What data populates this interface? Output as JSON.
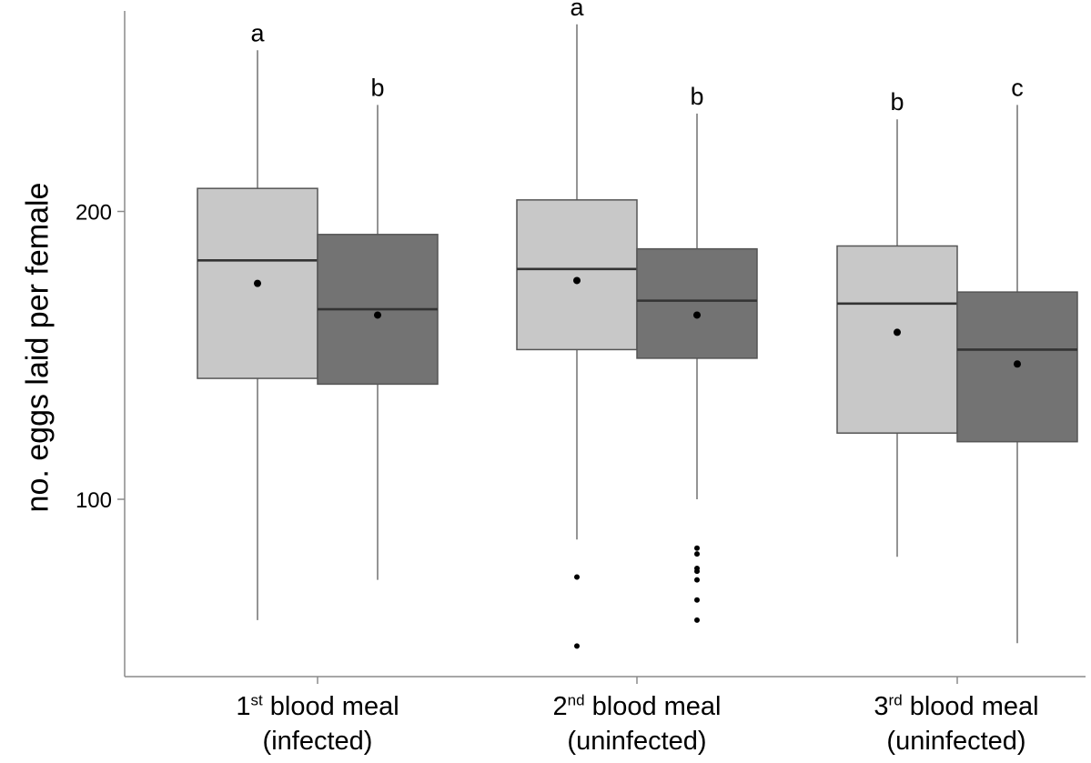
{
  "chart_data": {
    "type": "box",
    "ylabel": "no. eggs laid per female",
    "y_ticks": [
      "100",
      "200"
    ],
    "ylim": [
      40,
      265
    ],
    "categories": [
      {
        "ordinal": "1",
        "suffix": "st",
        "label": "blood meal",
        "sublabel": "(infected)"
      },
      {
        "ordinal": "2",
        "suffix": "nd",
        "label": "blood meal",
        "sublabel": "(uninfected)"
      },
      {
        "ordinal": "3",
        "suffix": "rd",
        "label": "blood meal",
        "sublabel": "(uninfected)"
      }
    ],
    "colors": {
      "light": "#c8c8c8",
      "dark": "#737373"
    },
    "boxes": [
      {
        "group": 0,
        "shade": "light",
        "whisker_low": 58,
        "q1": 142,
        "median": 183,
        "q3": 208,
        "whisker_high": 256,
        "mean": 175,
        "letter": "a",
        "outliers": []
      },
      {
        "group": 0,
        "shade": "dark",
        "whisker_low": 72,
        "q1": 140,
        "median": 166,
        "q3": 192,
        "whisker_high": 237,
        "mean": 164,
        "letter": "b",
        "outliers": []
      },
      {
        "group": 1,
        "shade": "light",
        "whisker_low": 86,
        "q1": 152,
        "median": 180,
        "q3": 204,
        "whisker_high": 265,
        "mean": 176,
        "letter": "a",
        "outliers": [
          73,
          49
        ]
      },
      {
        "group": 1,
        "shade": "dark",
        "whisker_low": 100,
        "q1": 149,
        "median": 169,
        "q3": 187,
        "whisker_high": 234,
        "mean": 164,
        "letter": "b",
        "outliers": [
          83,
          81,
          76,
          75,
          72,
          65,
          58
        ]
      },
      {
        "group": 2,
        "shade": "light",
        "whisker_low": 80,
        "q1": 123,
        "median": 168,
        "q3": 188,
        "whisker_high": 232,
        "mean": 158,
        "letter": "b",
        "outliers": []
      },
      {
        "group": 2,
        "shade": "dark",
        "whisker_low": 50,
        "q1": 120,
        "median": 152,
        "q3": 172,
        "whisker_high": 237,
        "mean": 147,
        "letter": "c",
        "outliers": []
      }
    ]
  }
}
